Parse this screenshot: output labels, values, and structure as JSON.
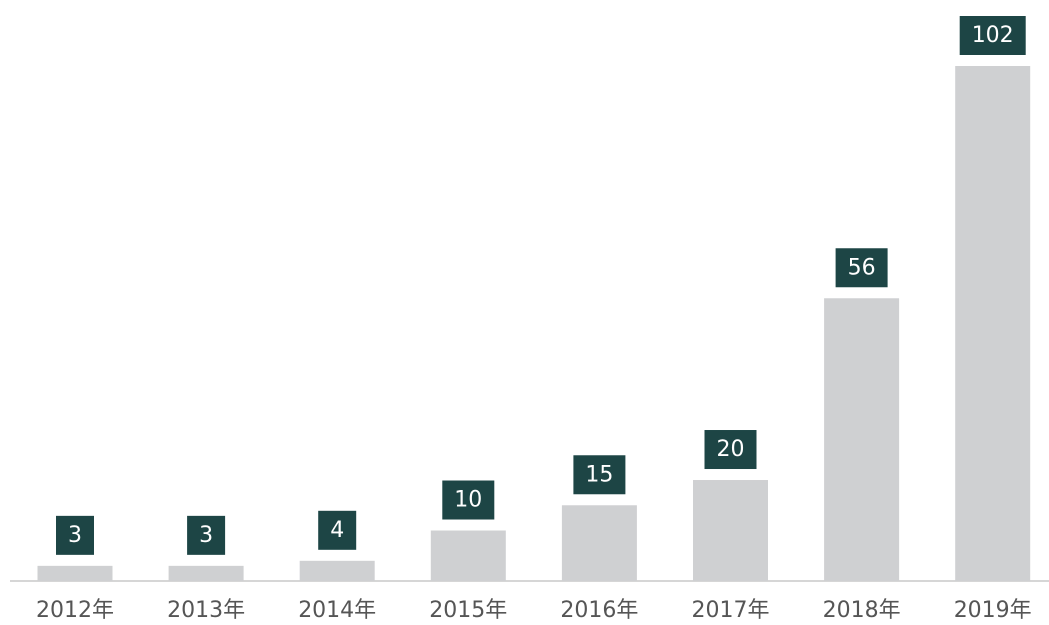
{
  "chart_data": {
    "type": "bar",
    "categories": [
      "2012年",
      "2013年",
      "2014年",
      "2015年",
      "2016年",
      "2017年",
      "2018年",
      "2019年"
    ],
    "values": [
      3,
      3,
      4,
      10,
      15,
      20,
      56,
      102
    ],
    "color": "#cfd0d2",
    "label_color": "#1d4545"
  }
}
